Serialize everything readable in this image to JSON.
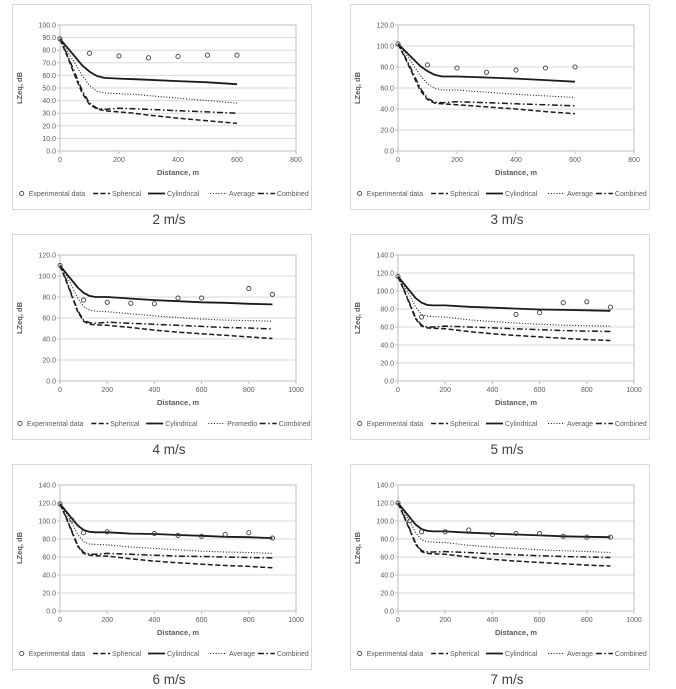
{
  "styles": {
    "grid_color": "#d9d9d9",
    "plot_border_color": "#bfbfbf",
    "line_color": "#1a1a1a",
    "marker_color": "#404040",
    "text_color": "#595959",
    "caption_color": "#404040"
  },
  "chart_data": [
    {
      "type": "line",
      "caption": "2 m/s",
      "xlabel": "Distance, m",
      "ylabel": "LZeq, dB",
      "xlim": [
        0,
        800
      ],
      "xtick_step": 200,
      "ylim": [
        0,
        100
      ],
      "ytick_step": 10,
      "grid": true,
      "legend_position": "bottom",
      "series": [
        {
          "name": "Experimental data",
          "style": "scatter",
          "x": [
            0,
            100,
            200,
            300,
            400,
            500,
            600
          ],
          "y": [
            89,
            77.5,
            75.5,
            74,
            75,
            76,
            76
          ]
        },
        {
          "name": "Spherical",
          "style": "dashed",
          "x": [
            0,
            25,
            50,
            75,
            100,
            125,
            150,
            200,
            250,
            300,
            400,
            500,
            600
          ],
          "y": [
            89,
            75,
            60,
            46,
            37,
            33.5,
            32,
            31,
            30,
            28.5,
            26,
            24,
            22
          ]
        },
        {
          "name": "Cylindrical",
          "style": "solid",
          "x": [
            0,
            25,
            50,
            75,
            100,
            125,
            150,
            200,
            250,
            300,
            400,
            500,
            600
          ],
          "y": [
            89,
            82,
            75,
            68,
            63,
            59.5,
            58,
            57.5,
            57,
            56.5,
            55.5,
            54.5,
            53
          ]
        },
        {
          "name": "Average",
          "style": "dotted",
          "x": [
            0,
            25,
            50,
            75,
            100,
            125,
            150,
            200,
            250,
            300,
            400,
            500,
            600
          ],
          "y": [
            89,
            79,
            70,
            60,
            52,
            47.5,
            46,
            45.5,
            45,
            44,
            42,
            40,
            38
          ]
        },
        {
          "name": "Combined",
          "style": "dashdot",
          "x": [
            0,
            25,
            50,
            75,
            100,
            125,
            150,
            200,
            250,
            300,
            400,
            500,
            600
          ],
          "y": [
            89,
            76,
            62,
            48,
            38,
            34,
            33,
            34,
            33.5,
            33,
            32,
            31,
            30
          ]
        }
      ]
    },
    {
      "type": "line",
      "caption": "3 m/s",
      "xlabel": "Distance, m",
      "ylabel": "LZeq, dB",
      "xlim": [
        0,
        800
      ],
      "xtick_step": 200,
      "ylim": [
        0,
        120
      ],
      "ytick_step": 20,
      "grid": true,
      "legend_position": "bottom",
      "series": [
        {
          "name": "Experimental data",
          "style": "scatter",
          "x": [
            0,
            100,
            200,
            300,
            400,
            500,
            600
          ],
          "y": [
            102,
            82,
            79,
            75,
            77,
            79,
            80
          ]
        },
        {
          "name": "Spherical",
          "style": "dashed",
          "x": [
            0,
            25,
            50,
            75,
            100,
            125,
            150,
            200,
            250,
            300,
            400,
            500,
            600
          ],
          "y": [
            102,
            88,
            73,
            58,
            49,
            45.5,
            45,
            44,
            43,
            42,
            40,
            37.5,
            35.5
          ]
        },
        {
          "name": "Cylindrical",
          "style": "solid",
          "x": [
            0,
            25,
            50,
            75,
            100,
            125,
            150,
            200,
            250,
            300,
            400,
            500,
            600
          ],
          "y": [
            102,
            95,
            88,
            81,
            76,
            72.5,
            71,
            71,
            70.5,
            70,
            69,
            67.5,
            66
          ]
        },
        {
          "name": "Average",
          "style": "dotted",
          "x": [
            0,
            25,
            50,
            75,
            100,
            125,
            150,
            200,
            250,
            300,
            400,
            500,
            600
          ],
          "y": [
            102,
            93,
            83,
            72,
            64,
            59.5,
            58,
            58,
            57,
            56,
            54,
            52.5,
            51
          ]
        },
        {
          "name": "Combined",
          "style": "dashdot",
          "x": [
            0,
            25,
            50,
            75,
            100,
            125,
            150,
            200,
            250,
            300,
            400,
            500,
            600
          ],
          "y": [
            102,
            89,
            75,
            60,
            50,
            46.5,
            46,
            47,
            46.5,
            46,
            45,
            44,
            43
          ]
        }
      ]
    },
    {
      "type": "line",
      "caption": "4 m/s",
      "xlabel": "Distance, m",
      "ylabel": "LZeq, dB",
      "xlim": [
        0,
        1000
      ],
      "xtick_step": 200,
      "ylim": [
        0,
        120
      ],
      "ytick_step": 20,
      "grid": true,
      "legend_position": "bottom",
      "series": [
        {
          "name": "Experimental data",
          "style": "scatter",
          "x": [
            0,
            100,
            200,
            300,
            400,
            500,
            600,
            800,
            900
          ],
          "y": [
            110,
            77,
            75,
            74,
            73.5,
            79,
            79,
            88,
            82.5
          ]
        },
        {
          "name": "Spherical",
          "style": "dashed",
          "x": [
            0,
            25,
            50,
            75,
            100,
            125,
            150,
            200,
            300,
            400,
            500,
            600,
            700,
            800,
            900
          ],
          "y": [
            110,
            96,
            81,
            66,
            57,
            54,
            53.5,
            53,
            51,
            48.5,
            46.5,
            45,
            43.5,
            42,
            40.5
          ]
        },
        {
          "name": "Cylindrical",
          "style": "solid",
          "x": [
            0,
            25,
            50,
            75,
            100,
            125,
            150,
            200,
            300,
            400,
            500,
            600,
            700,
            800,
            900
          ],
          "y": [
            110,
            103,
            96,
            89,
            84,
            81,
            80,
            80,
            78.5,
            77,
            76,
            75,
            74.5,
            73.5,
            73
          ]
        },
        {
          "name": "Promedio",
          "style": "dotted",
          "x": [
            0,
            25,
            50,
            75,
            100,
            125,
            150,
            200,
            300,
            400,
            500,
            600,
            700,
            800,
            900
          ],
          "y": [
            110,
            101,
            91,
            79,
            71,
            67.5,
            66.5,
            66,
            64,
            62,
            60.5,
            59,
            58,
            57.5,
            57
          ]
        },
        {
          "name": "Combined",
          "style": "dashdot",
          "x": [
            0,
            25,
            50,
            75,
            100,
            125,
            150,
            200,
            300,
            400,
            500,
            600,
            700,
            800,
            900
          ],
          "y": [
            110,
            97,
            82,
            67,
            58,
            55.5,
            55,
            56,
            55,
            54,
            53,
            52,
            51,
            50.5,
            49.5
          ]
        }
      ]
    },
    {
      "type": "line",
      "caption": "5 m/s",
      "xlabel": "Distance, m",
      "ylabel": "LZeq, dB",
      "xlim": [
        0,
        1000
      ],
      "xtick_step": 200,
      "ylim": [
        0,
        140
      ],
      "ytick_step": 20,
      "grid": true,
      "legend_position": "bottom",
      "series": [
        {
          "name": "Experimental data",
          "style": "scatter",
          "x": [
            0,
            100,
            500,
            600,
            700,
            800,
            900
          ],
          "y": [
            116,
            71,
            74,
            76,
            87,
            88,
            82
          ]
        },
        {
          "name": "Spherical",
          "style": "dashed",
          "x": [
            0,
            25,
            50,
            75,
            100,
            125,
            150,
            200,
            300,
            400,
            500,
            600,
            700,
            800,
            900
          ],
          "y": [
            116,
            101,
            85,
            69,
            61,
            59,
            58.5,
            58,
            55,
            52.5,
            50.5,
            49,
            47.5,
            46,
            45
          ]
        },
        {
          "name": "Cylindrical",
          "style": "solid",
          "x": [
            0,
            25,
            50,
            75,
            100,
            125,
            150,
            200,
            300,
            400,
            500,
            600,
            700,
            800,
            900
          ],
          "y": [
            116,
            108,
            100,
            92,
            87,
            84.5,
            84,
            84,
            82.5,
            81.5,
            80.5,
            79.5,
            79,
            78.5,
            78
          ]
        },
        {
          "name": "Average",
          "style": "dotted",
          "x": [
            0,
            25,
            50,
            75,
            100,
            125,
            150,
            200,
            300,
            400,
            500,
            600,
            700,
            800,
            900
          ],
          "y": [
            116,
            106,
            95,
            82,
            74,
            72,
            71.5,
            71,
            68,
            66,
            64.5,
            63,
            62,
            61.5,
            61
          ]
        },
        {
          "name": "Combined",
          "style": "dashdot",
          "x": [
            0,
            25,
            50,
            75,
            100,
            125,
            150,
            200,
            300,
            400,
            500,
            600,
            700,
            800,
            900
          ],
          "y": [
            116,
            102,
            86,
            70,
            62,
            60,
            60,
            61,
            60,
            59,
            58,
            57,
            56,
            55.5,
            55
          ]
        }
      ]
    },
    {
      "type": "line",
      "caption": "6 m/s",
      "xlabel": "Distance, m",
      "ylabel": "LZeq, dB",
      "xlim": [
        0,
        1000
      ],
      "xtick_step": 200,
      "ylim": [
        0,
        140
      ],
      "ytick_step": 20,
      "grid": true,
      "legend_position": "bottom",
      "series": [
        {
          "name": "Experimental data",
          "style": "scatter",
          "x": [
            0,
            50,
            100,
            200,
            400,
            500,
            600,
            700,
            800,
            900
          ],
          "y": [
            119,
            101,
            87,
            88,
            86,
            84,
            83,
            85,
            87,
            81
          ]
        },
        {
          "name": "Spherical",
          "style": "dashed",
          "x": [
            0,
            25,
            50,
            75,
            100,
            125,
            150,
            200,
            300,
            400,
            500,
            600,
            700,
            800,
            900
          ],
          "y": [
            119,
            104,
            88,
            72,
            64,
            62,
            61.5,
            61,
            58,
            55.5,
            53.5,
            52,
            50.5,
            49.5,
            48
          ]
        },
        {
          "name": "Cylindrical",
          "style": "solid",
          "x": [
            0,
            25,
            50,
            75,
            100,
            125,
            150,
            200,
            300,
            400,
            500,
            600,
            700,
            800,
            900
          ],
          "y": [
            119,
            111,
            103,
            95,
            90,
            88,
            87.5,
            87.5,
            86,
            85.5,
            84.5,
            83.5,
            82.5,
            82,
            81
          ]
        },
        {
          "name": "Average",
          "style": "dotted",
          "x": [
            0,
            25,
            50,
            75,
            100,
            125,
            150,
            200,
            300,
            400,
            500,
            600,
            700,
            800,
            900
          ],
          "y": [
            119,
            109,
            98,
            85,
            77,
            74.5,
            74,
            73.5,
            71,
            69.5,
            68,
            66.5,
            65.5,
            65,
            64
          ]
        },
        {
          "name": "Combined",
          "style": "dashdot",
          "x": [
            0,
            25,
            50,
            75,
            100,
            125,
            150,
            200,
            300,
            400,
            500,
            600,
            700,
            800,
            900
          ],
          "y": [
            119,
            105,
            89,
            73,
            65,
            63,
            63,
            64,
            63,
            62,
            61,
            60.5,
            60,
            59.5,
            59
          ]
        }
      ]
    },
    {
      "type": "line",
      "caption": "7 m/s",
      "xlabel": "Distance, m",
      "ylabel": "LZeq, dB",
      "xlim": [
        0,
        1000
      ],
      "xtick_step": 200,
      "ylim": [
        0,
        140
      ],
      "ytick_step": 20,
      "grid": true,
      "legend_position": "bottom",
      "series": [
        {
          "name": "Experimental data",
          "style": "scatter",
          "x": [
            0,
            50,
            100,
            200,
            300,
            400,
            500,
            600,
            700,
            800,
            900
          ],
          "y": [
            120,
            100,
            88,
            88,
            90,
            85,
            86,
            86,
            83,
            82,
            82
          ]
        },
        {
          "name": "Spherical",
          "style": "dashed",
          "x": [
            0,
            25,
            50,
            75,
            100,
            125,
            150,
            200,
            300,
            400,
            500,
            600,
            700,
            800,
            900
          ],
          "y": [
            120,
            105,
            90,
            74,
            66,
            64,
            63.5,
            63,
            60,
            57.5,
            55.5,
            54,
            52.5,
            51,
            50
          ]
        },
        {
          "name": "Cylindrical",
          "style": "solid",
          "x": [
            0,
            25,
            50,
            75,
            100,
            125,
            150,
            200,
            300,
            400,
            500,
            600,
            700,
            800,
            900
          ],
          "y": [
            120,
            112,
            104,
            96,
            91,
            89,
            88.5,
            88.5,
            87,
            86,
            85,
            84,
            83,
            82.5,
            82
          ]
        },
        {
          "name": "Average",
          "style": "dotted",
          "x": [
            0,
            25,
            50,
            75,
            100,
            125,
            150,
            200,
            300,
            400,
            500,
            600,
            700,
            800,
            900
          ],
          "y": [
            120,
            110,
            99,
            87,
            79,
            77,
            76.5,
            76,
            73,
            71,
            69.5,
            68,
            67,
            66,
            65
          ]
        },
        {
          "name": "Combined",
          "style": "dashdot",
          "x": [
            0,
            25,
            50,
            75,
            100,
            125,
            150,
            200,
            300,
            400,
            500,
            600,
            700,
            800,
            900
          ],
          "y": [
            120,
            106,
            91,
            75,
            67,
            65.5,
            65.5,
            66,
            65,
            63.5,
            62.5,
            61.5,
            60.5,
            60,
            59.5
          ]
        }
      ]
    }
  ]
}
